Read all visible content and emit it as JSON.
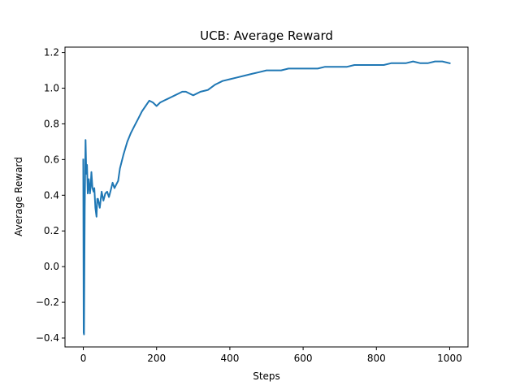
{
  "chart_data": {
    "type": "line",
    "title": "UCB: Average Reward",
    "xlabel": "Steps",
    "ylabel": "Average Reward",
    "xlim": [
      -50,
      1050
    ],
    "ylim": [
      -0.45,
      1.23
    ],
    "xticks": [
      0,
      200,
      400,
      600,
      800,
      1000
    ],
    "xtick_labels": [
      "0",
      "200",
      "400",
      "600",
      "800",
      "1000"
    ],
    "yticks": [
      -0.4,
      -0.2,
      0.0,
      0.2,
      0.4,
      0.6,
      0.8,
      1.0,
      1.2
    ],
    "ytick_labels": [
      "−0.4",
      "−0.2",
      "0.0",
      "0.2",
      "0.4",
      "0.6",
      "0.8",
      "1.0",
      "1.2"
    ],
    "grid": false,
    "series": [
      {
        "color": "#1f77b4",
        "x": [
          0,
          1,
          2,
          3,
          4,
          6,
          8,
          10,
          12,
          15,
          18,
          20,
          22,
          25,
          28,
          30,
          33,
          36,
          38,
          40,
          45,
          50,
          55,
          60,
          65,
          70,
          75,
          80,
          85,
          90,
          95,
          100,
          110,
          120,
          130,
          140,
          150,
          160,
          170,
          180,
          190,
          200,
          210,
          220,
          230,
          240,
          250,
          260,
          270,
          280,
          290,
          300,
          320,
          340,
          360,
          380,
          400,
          420,
          440,
          460,
          480,
          500,
          520,
          540,
          560,
          580,
          600,
          620,
          640,
          660,
          680,
          700,
          720,
          740,
          760,
          780,
          800,
          820,
          840,
          860,
          880,
          900,
          920,
          940,
          960,
          980,
          1000
        ],
        "values": [
          0.6,
          -0.37,
          -0.38,
          0.02,
          0.33,
          0.71,
          0.52,
          0.57,
          0.41,
          0.49,
          0.41,
          0.45,
          0.53,
          0.44,
          0.42,
          0.44,
          0.33,
          0.28,
          0.38,
          0.38,
          0.33,
          0.42,
          0.37,
          0.41,
          0.42,
          0.39,
          0.43,
          0.47,
          0.44,
          0.46,
          0.48,
          0.55,
          0.63,
          0.7,
          0.75,
          0.79,
          0.83,
          0.87,
          0.9,
          0.93,
          0.92,
          0.9,
          0.92,
          0.93,
          0.94,
          0.95,
          0.96,
          0.97,
          0.98,
          0.98,
          0.97,
          0.96,
          0.98,
          0.99,
          1.02,
          1.04,
          1.05,
          1.06,
          1.07,
          1.08,
          1.09,
          1.1,
          1.1,
          1.1,
          1.11,
          1.11,
          1.11,
          1.11,
          1.11,
          1.12,
          1.12,
          1.12,
          1.12,
          1.13,
          1.13,
          1.13,
          1.13,
          1.13,
          1.14,
          1.14,
          1.14,
          1.15,
          1.14,
          1.14,
          1.15,
          1.15,
          1.14
        ]
      }
    ]
  }
}
